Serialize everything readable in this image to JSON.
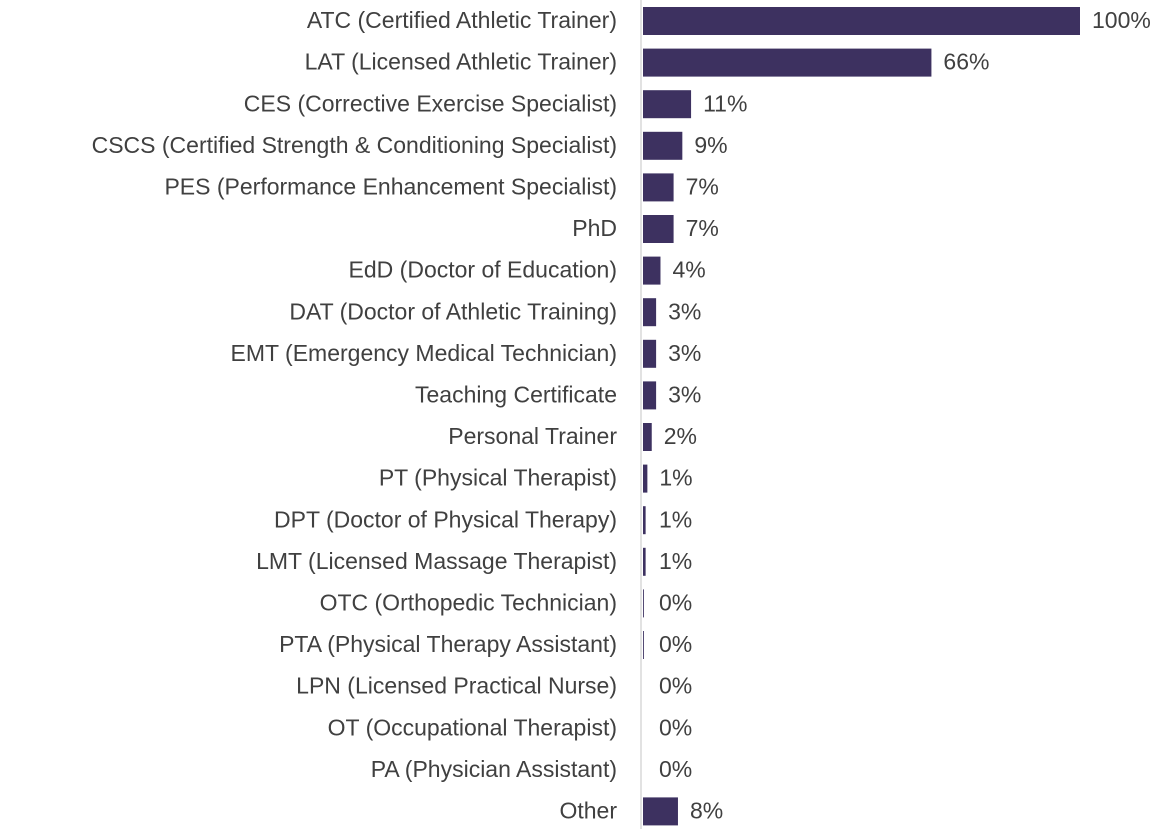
{
  "chart_data": {
    "type": "barh",
    "categories": [
      "ATC (Certified Athletic Trainer)",
      "LAT (Licensed Athletic Trainer)",
      "CES (Corrective Exercise Specialist)",
      "CSCS (Certified Strength & Conditioning Specialist)",
      "PES (Performance Enhancement Specialist)",
      "PhD",
      "EdD (Doctor of Education)",
      "DAT (Doctor of Athletic Training)",
      "EMT (Emergency Medical Technician)",
      "Teaching Certificate",
      "Personal Trainer",
      "PT (Physical Therapist)",
      "DPT (Doctor of Physical Therapy)",
      "LMT (Licensed Massage Therapist)",
      "OTC (Orthopedic Technician)",
      "PTA (Physical Therapy Assistant)",
      "LPN (Licensed Practical Nurse)",
      "OT (Occupational Therapist)",
      "PA (Physician Assistant)",
      "Other"
    ],
    "values": [
      100,
      66,
      11,
      9,
      7,
      7,
      4,
      3,
      3,
      3,
      2,
      1,
      0.6,
      0.6,
      0.2,
      0.2,
      0,
      0,
      0,
      8
    ],
    "value_labels": [
      "100%",
      "66%",
      "11%",
      "9%",
      "7%",
      "7%",
      "4%",
      "3%",
      "3%",
      "3%",
      "2%",
      "1%",
      "1%",
      "1%",
      "0%",
      "0%",
      "0%",
      "0%",
      "0%",
      "8%"
    ],
    "color": "#3d3160",
    "xlim": [
      0,
      100
    ]
  }
}
